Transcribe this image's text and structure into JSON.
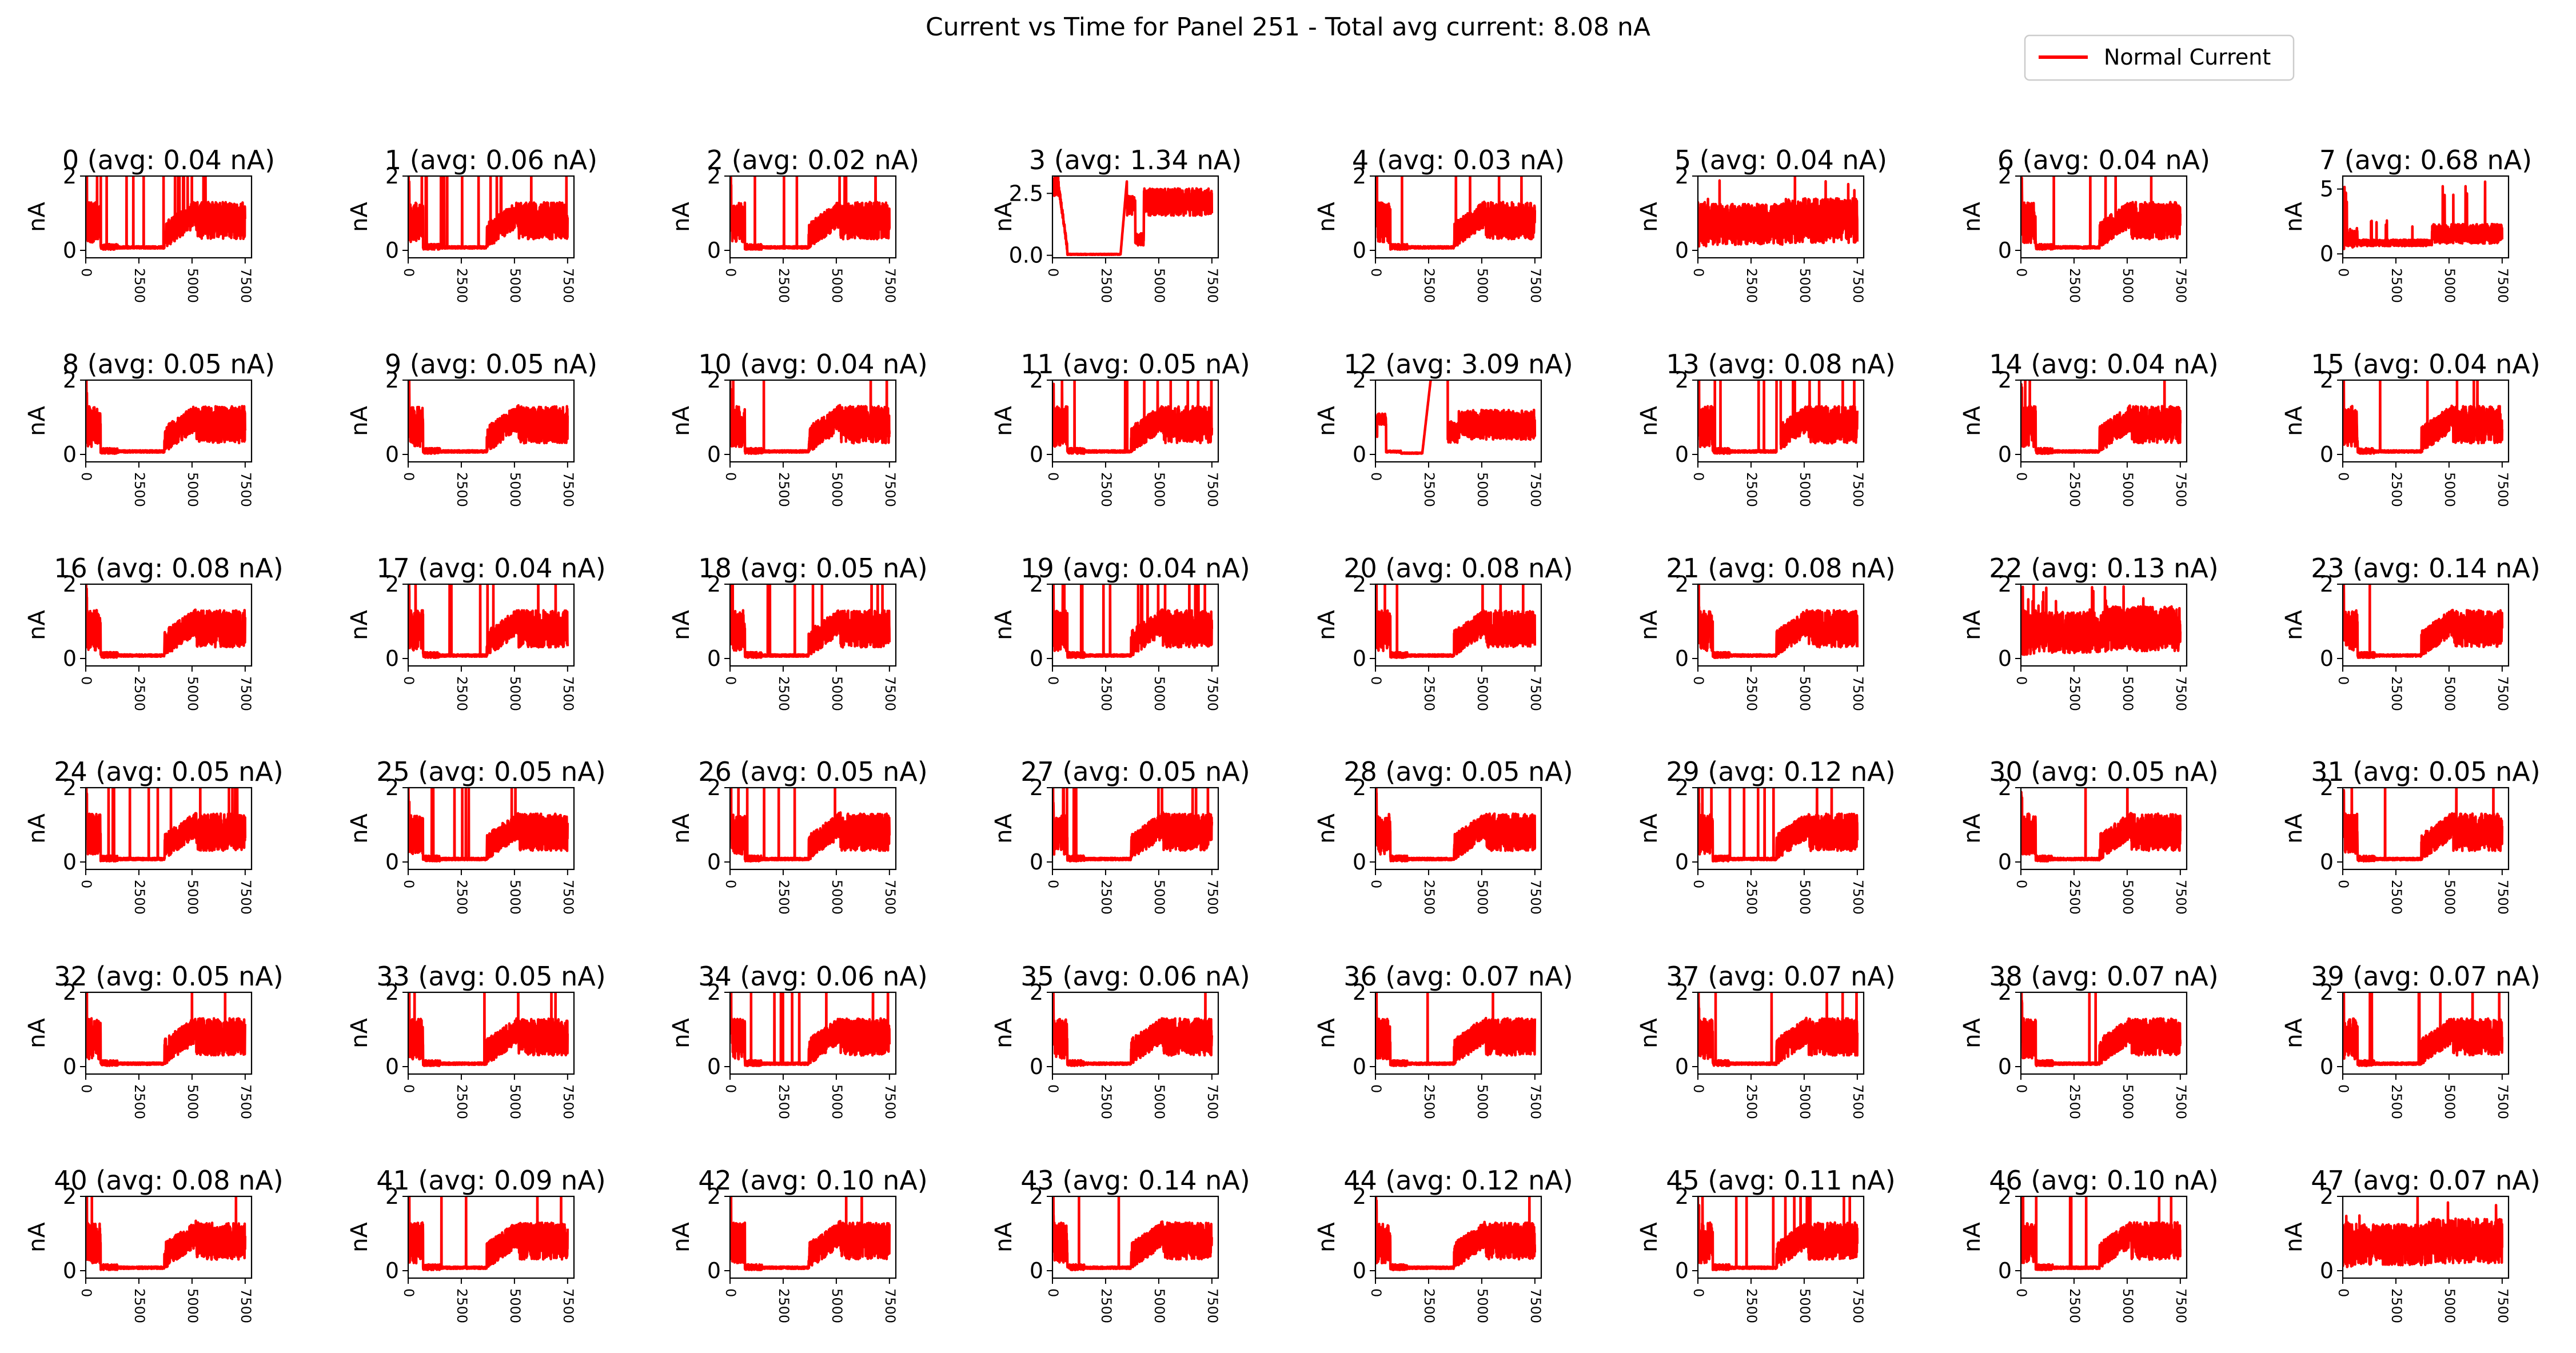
{
  "figure": {
    "title": "Current vs Time for Panel 251 - Total avg current: 8.08 nA",
    "legend_label": "Normal Current",
    "legend_placement": "top-right",
    "line_color": "#ff0000"
  },
  "chart_data": {
    "type": "line",
    "grid": false,
    "ylabel": "nA",
    "xlim": [
      0,
      7500
    ],
    "x_ticks": [
      "0",
      "2500",
      "5000",
      "7500"
    ],
    "series_name": "Normal Current",
    "panels": [
      {
        "id": 0,
        "title": "0 (avg: 0.04 nA)",
        "ylim": [
          -0.2,
          2.0
        ],
        "yticks": [
          "0",
          "2"
        ],
        "profile": "A",
        "spike": 0.9
      },
      {
        "id": 1,
        "title": "1 (avg: 0.06 nA)",
        "ylim": [
          -0.2,
          2.0
        ],
        "yticks": [
          "0",
          "2"
        ],
        "profile": "A",
        "spike": 0.9
      },
      {
        "id": 2,
        "title": "2 (avg: 0.02 nA)",
        "ylim": [
          -0.2,
          2.0
        ],
        "yticks": [
          "0",
          "2"
        ],
        "profile": "A",
        "spike": 0.9
      },
      {
        "id": 3,
        "title": "3 (avg: 1.34 nA)",
        "ylim": [
          -0.1,
          3.2
        ],
        "yticks": [
          "0.0",
          "2.5"
        ],
        "profile": "C",
        "spike": 0.3
      },
      {
        "id": 4,
        "title": "4 (avg: 0.03 nA)",
        "ylim": [
          -0.2,
          2.0
        ],
        "yticks": [
          "0",
          "2"
        ],
        "profile": "A",
        "spike": 0.3
      },
      {
        "id": 5,
        "title": "5 (avg: 0.04 nA)",
        "ylim": [
          -0.2,
          2.0
        ],
        "yticks": [
          "0",
          "2"
        ],
        "profile": "B",
        "spike": 0.3
      },
      {
        "id": 6,
        "title": "6 (avg: 0.04 nA)",
        "ylim": [
          -0.2,
          2.0
        ],
        "yticks": [
          "0",
          "2"
        ],
        "profile": "A",
        "spike": 0.6
      },
      {
        "id": 7,
        "title": "7 (avg: 0.68 nA)",
        "ylim": [
          -0.3,
          6.0
        ],
        "yticks": [
          "0",
          "5"
        ],
        "profile": "D",
        "spike": 0.6
      },
      {
        "id": 8,
        "title": "8 (avg: 0.05 nA)",
        "ylim": [
          -0.2,
          2.0
        ],
        "yticks": [
          "0",
          "2"
        ],
        "profile": "A",
        "spike": 0.0
      },
      {
        "id": 9,
        "title": "9 (avg: 0.05 nA)",
        "ylim": [
          -0.2,
          2.0
        ],
        "yticks": [
          "0",
          "2"
        ],
        "profile": "A",
        "spike": 0.0
      },
      {
        "id": 10,
        "title": "10 (avg: 0.04 nA)",
        "ylim": [
          -0.2,
          2.0
        ],
        "yticks": [
          "0",
          "2"
        ],
        "profile": "A",
        "spike": 0.2
      },
      {
        "id": 11,
        "title": "11 (avg: 0.05 nA)",
        "ylim": [
          -0.2,
          2.0
        ],
        "yticks": [
          "0",
          "2"
        ],
        "profile": "A",
        "spike": 0.7
      },
      {
        "id": 12,
        "title": "12 (avg: 3.09 nA)",
        "ylim": [
          -0.2,
          2.0
        ],
        "yticks": [
          "0",
          "2"
        ],
        "profile": "E",
        "spike": 0.2
      },
      {
        "id": 13,
        "title": "13 (avg: 0.08 nA)",
        "ylim": [
          -0.2,
          2.0
        ],
        "yticks": [
          "0",
          "2"
        ],
        "profile": "F",
        "spike": 0.4
      },
      {
        "id": 14,
        "title": "14 (avg: 0.04 nA)",
        "ylim": [
          -0.2,
          2.0
        ],
        "yticks": [
          "0",
          "2"
        ],
        "profile": "A",
        "spike": 0.2
      },
      {
        "id": 15,
        "title": "15 (avg: 0.04 nA)",
        "ylim": [
          -0.2,
          2.0
        ],
        "yticks": [
          "0",
          "2"
        ],
        "profile": "A",
        "spike": 0.5
      },
      {
        "id": 16,
        "title": "16 (avg: 0.08 nA)",
        "ylim": [
          -0.2,
          2.0
        ],
        "yticks": [
          "0",
          "2"
        ],
        "profile": "A",
        "spike": 0.0
      },
      {
        "id": 17,
        "title": "17 (avg: 0.04 nA)",
        "ylim": [
          -0.2,
          2.0
        ],
        "yticks": [
          "0",
          "2"
        ],
        "profile": "A",
        "spike": 0.5
      },
      {
        "id": 18,
        "title": "18 (avg: 0.05 nA)",
        "ylim": [
          -0.2,
          2.0
        ],
        "yticks": [
          "0",
          "2"
        ],
        "profile": "A",
        "spike": 0.4
      },
      {
        "id": 19,
        "title": "19 (avg: 0.04 nA)",
        "ylim": [
          -0.2,
          2.0
        ],
        "yticks": [
          "0",
          "2"
        ],
        "profile": "A",
        "spike": 0.9
      },
      {
        "id": 20,
        "title": "20 (avg: 0.08 nA)",
        "ylim": [
          -0.2,
          2.0
        ],
        "yticks": [
          "0",
          "2"
        ],
        "profile": "A",
        "spike": 0.6
      },
      {
        "id": 21,
        "title": "21 (avg: 0.08 nA)",
        "ylim": [
          -0.2,
          2.0
        ],
        "yticks": [
          "0",
          "2"
        ],
        "profile": "A",
        "spike": 0.1
      },
      {
        "id": 22,
        "title": "22 (avg: 0.13 nA)",
        "ylim": [
          -0.2,
          2.0
        ],
        "yticks": [
          "0",
          "2"
        ],
        "profile": "B",
        "spike": 0.8
      },
      {
        "id": 23,
        "title": "23 (avg: 0.14 nA)",
        "ylim": [
          -0.2,
          2.0
        ],
        "yticks": [
          "0",
          "2"
        ],
        "profile": "A",
        "spike": 0.2
      },
      {
        "id": 24,
        "title": "24 (avg: 0.05 nA)",
        "ylim": [
          -0.2,
          2.0
        ],
        "yticks": [
          "0",
          "2"
        ],
        "profile": "A",
        "spike": 0.5
      },
      {
        "id": 25,
        "title": "25 (avg: 0.05 nA)",
        "ylim": [
          -0.2,
          2.0
        ],
        "yticks": [
          "0",
          "2"
        ],
        "profile": "A",
        "spike": 0.4
      },
      {
        "id": 26,
        "title": "26 (avg: 0.05 nA)",
        "ylim": [
          -0.2,
          2.0
        ],
        "yticks": [
          "0",
          "2"
        ],
        "profile": "A",
        "spike": 0.5
      },
      {
        "id": 27,
        "title": "27 (avg: 0.05 nA)",
        "ylim": [
          -0.2,
          2.0
        ],
        "yticks": [
          "0",
          "2"
        ],
        "profile": "A",
        "spike": 0.5
      },
      {
        "id": 28,
        "title": "28 (avg: 0.05 nA)",
        "ylim": [
          -0.2,
          2.0
        ],
        "yticks": [
          "0",
          "2"
        ],
        "profile": "A",
        "spike": 0.1
      },
      {
        "id": 29,
        "title": "29 (avg: 0.12 nA)",
        "ylim": [
          -0.2,
          2.0
        ],
        "yticks": [
          "0",
          "2"
        ],
        "profile": "A",
        "spike": 0.5
      },
      {
        "id": 30,
        "title": "30 (avg: 0.05 nA)",
        "ylim": [
          -0.2,
          2.0
        ],
        "yticks": [
          "0",
          "2"
        ],
        "profile": "A",
        "spike": 0.2
      },
      {
        "id": 31,
        "title": "31 (avg: 0.05 nA)",
        "ylim": [
          -0.2,
          2.0
        ],
        "yticks": [
          "0",
          "2"
        ],
        "profile": "A",
        "spike": 0.2
      },
      {
        "id": 32,
        "title": "32 (avg: 0.05 nA)",
        "ylim": [
          -0.2,
          2.0
        ],
        "yticks": [
          "0",
          "2"
        ],
        "profile": "A",
        "spike": 0.2
      },
      {
        "id": 33,
        "title": "33 (avg: 0.05 nA)",
        "ylim": [
          -0.2,
          2.0
        ],
        "yticks": [
          "0",
          "2"
        ],
        "profile": "A",
        "spike": 0.3
      },
      {
        "id": 34,
        "title": "34 (avg: 0.06 nA)",
        "ylim": [
          -0.2,
          2.0
        ],
        "yticks": [
          "0",
          "2"
        ],
        "profile": "A",
        "spike": 0.5
      },
      {
        "id": 35,
        "title": "35 (avg: 0.06 nA)",
        "ylim": [
          -0.2,
          2.0
        ],
        "yticks": [
          "0",
          "2"
        ],
        "profile": "A",
        "spike": 0.1
      },
      {
        "id": 36,
        "title": "36 (avg: 0.07 nA)",
        "ylim": [
          -0.2,
          2.0
        ],
        "yticks": [
          "0",
          "2"
        ],
        "profile": "A",
        "spike": 0.2
      },
      {
        "id": 37,
        "title": "37 (avg: 0.07 nA)",
        "ylim": [
          -0.2,
          2.0
        ],
        "yticks": [
          "0",
          "2"
        ],
        "profile": "A",
        "spike": 0.3
      },
      {
        "id": 38,
        "title": "38 (avg: 0.07 nA)",
        "ylim": [
          -0.2,
          2.0
        ],
        "yticks": [
          "0",
          "2"
        ],
        "profile": "A",
        "spike": 0.3
      },
      {
        "id": 39,
        "title": "39 (avg: 0.07 nA)",
        "ylim": [
          -0.2,
          2.0
        ],
        "yticks": [
          "0",
          "2"
        ],
        "profile": "A",
        "spike": 0.3
      },
      {
        "id": 40,
        "title": "40 (avg: 0.08 nA)",
        "ylim": [
          -0.2,
          2.0
        ],
        "yticks": [
          "0",
          "2"
        ],
        "profile": "A",
        "spike": 0.1
      },
      {
        "id": 41,
        "title": "41 (avg: 0.09 nA)",
        "ylim": [
          -0.2,
          2.0
        ],
        "yticks": [
          "0",
          "2"
        ],
        "profile": "A",
        "spike": 0.3
      },
      {
        "id": 42,
        "title": "42 (avg: 0.10 nA)",
        "ylim": [
          -0.2,
          2.0
        ],
        "yticks": [
          "0",
          "2"
        ],
        "profile": "A",
        "spike": 0.3
      },
      {
        "id": 43,
        "title": "43 (avg: 0.14 nA)",
        "ylim": [
          -0.2,
          2.0
        ],
        "yticks": [
          "0",
          "2"
        ],
        "profile": "A",
        "spike": 0.1
      },
      {
        "id": 44,
        "title": "44 (avg: 0.12 nA)",
        "ylim": [
          -0.2,
          2.0
        ],
        "yticks": [
          "0",
          "2"
        ],
        "profile": "A",
        "spike": 0.1
      },
      {
        "id": 45,
        "title": "45 (avg: 0.11 nA)",
        "ylim": [
          -0.2,
          2.0
        ],
        "yticks": [
          "0",
          "2"
        ],
        "profile": "A",
        "spike": 0.7
      },
      {
        "id": 46,
        "title": "46 (avg: 0.10 nA)",
        "ylim": [
          -0.2,
          2.0
        ],
        "yticks": [
          "0",
          "2"
        ],
        "profile": "A",
        "spike": 0.4
      },
      {
        "id": 47,
        "title": "47 (avg: 0.07 nA)",
        "ylim": [
          -0.2,
          2.0
        ],
        "yticks": [
          "0",
          "2"
        ],
        "profile": "B",
        "spike": 0.5
      }
    ]
  }
}
